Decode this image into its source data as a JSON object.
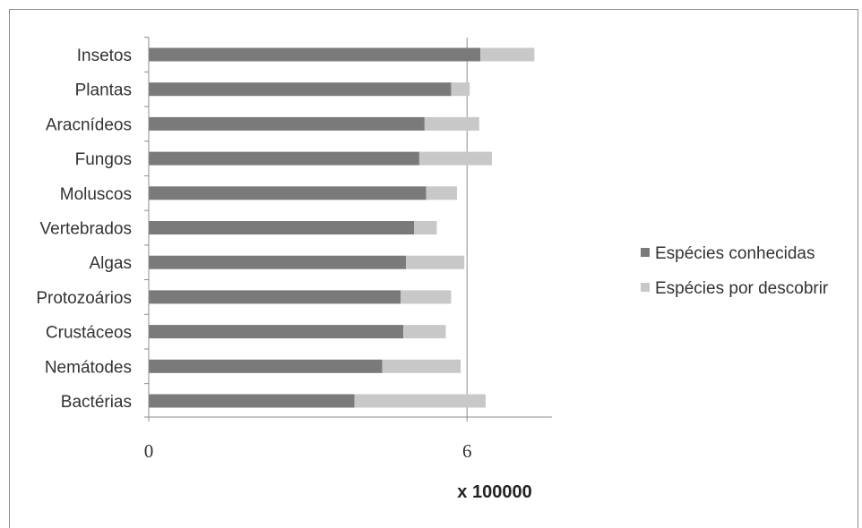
{
  "chart_data": {
    "type": "bar",
    "orientation": "horizontal",
    "stacked": true,
    "categories": [
      "Insetos",
      "Plantas",
      "Aracnídeos",
      "Fungos",
      "Moluscos",
      "Vertebrados",
      "Algas",
      "Protozoários",
      "Crustáceos",
      "Nemátodes",
      "Bactérias"
    ],
    "series": [
      {
        "name": "Espécies conhecidas",
        "color": "#7a7a7a",
        "values": [
          6.25,
          5.7,
          5.2,
          5.1,
          5.23,
          5.0,
          4.85,
          4.75,
          4.8,
          4.4,
          3.88
        ]
      },
      {
        "name": "Espécies por descobrir",
        "color": "#c8c8c8",
        "values": [
          1.02,
          0.35,
          1.03,
          1.37,
          0.58,
          0.43,
          1.1,
          0.95,
          0.8,
          1.48,
          2.47
        ]
      }
    ],
    "xticks": [
      "0",
      "6"
    ],
    "xtick_values": [
      0,
      6
    ],
    "xlabel": "x 100000",
    "xlim": [
      0,
      7.6
    ],
    "grid": "single vertical line at 6",
    "legend": "right"
  }
}
